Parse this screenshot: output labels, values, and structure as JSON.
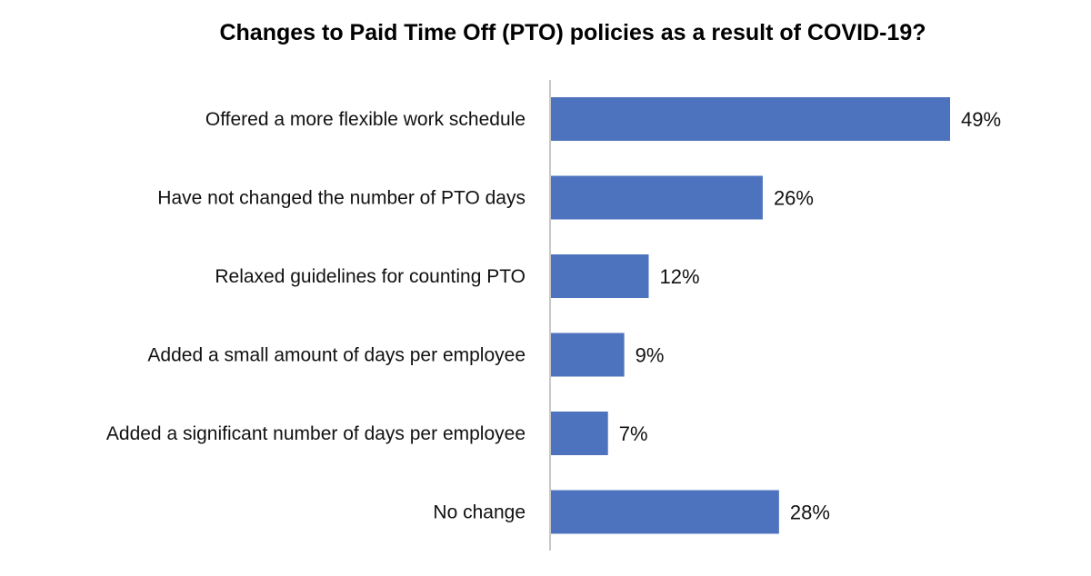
{
  "chart_data": {
    "type": "bar",
    "orientation": "horizontal",
    "title": "Changes to Paid Time Off (PTO) policies as a result of COVID-19?",
    "categories": [
      "Offered a more flexible work schedule",
      "Have not changed the number of PTO days",
      "Relaxed guidelines for counting PTO",
      "Added a small amount of days per employee",
      "Added a significant number of days per employee",
      "No change"
    ],
    "values": [
      49,
      26,
      12,
      9,
      7,
      28
    ],
    "value_labels": [
      "49%",
      "26%",
      "12%",
      "9%",
      "7%",
      "28%"
    ],
    "xlim": [
      0,
      60
    ],
    "grid": false,
    "legend": "none",
    "bar_color": "#4E73BE",
    "axis_color": "#C8C8C8"
  }
}
